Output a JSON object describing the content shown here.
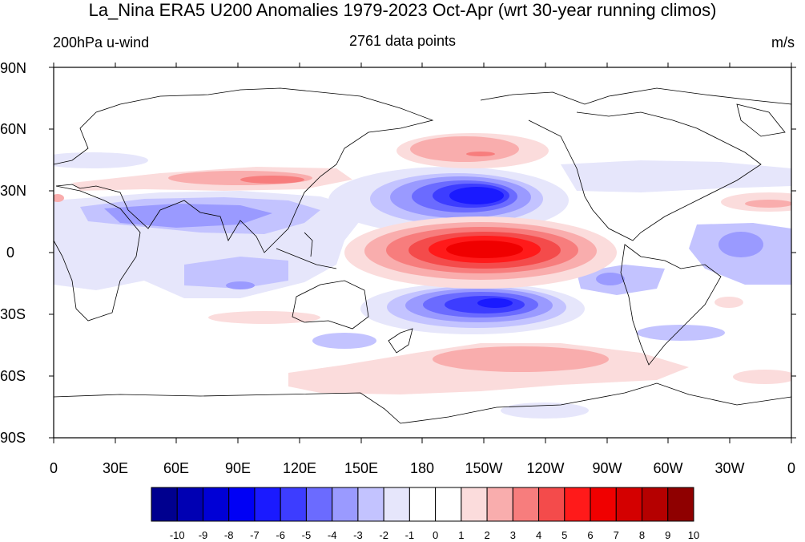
{
  "title": "La_Nina ERA5 U200 Anomalies 1979-2023 Oct-Apr (wrt 30-year running climos)",
  "left_label": "200hPa u-wind",
  "center_label": "2761 data points",
  "right_label": "m/s",
  "lat_ticks": [
    "90N",
    "60N",
    "30N",
    "0",
    "30S",
    "60S",
    "90S"
  ],
  "lon_ticks": [
    "0",
    "30E",
    "60E",
    "90E",
    "120E",
    "150E",
    "180",
    "150W",
    "120W",
    "90W",
    "60W",
    "30W",
    "0"
  ],
  "colorbar": {
    "labels": [
      "-10",
      "-9",
      "-8",
      "-7",
      "-6",
      "-5",
      "-4",
      "-3",
      "-2",
      "-1",
      "0",
      "1",
      "2",
      "3",
      "4",
      "5",
      "6",
      "7",
      "8",
      "9",
      "10"
    ],
    "colors": [
      "#00008f",
      "#0000b3",
      "#0000d6",
      "#0000f5",
      "#1a1aff",
      "#3d3dff",
      "#6b6bff",
      "#9a9aff",
      "#c3c3ff",
      "#e6e6fb",
      "#ffffff",
      "#ffffff",
      "#fbdcdc",
      "#f9adad",
      "#f77d7d",
      "#f44b4b",
      "#ff1a1a",
      "#f00000",
      "#d40000",
      "#b50000",
      "#8f0000"
    ]
  },
  "anomalies": {
    "note_colors": [
      "#c3c3ff",
      "#9a9aff",
      "#6b6bff",
      "#3d3dff",
      "#1a1aff",
      "#0000f5"
    ]
  }
}
